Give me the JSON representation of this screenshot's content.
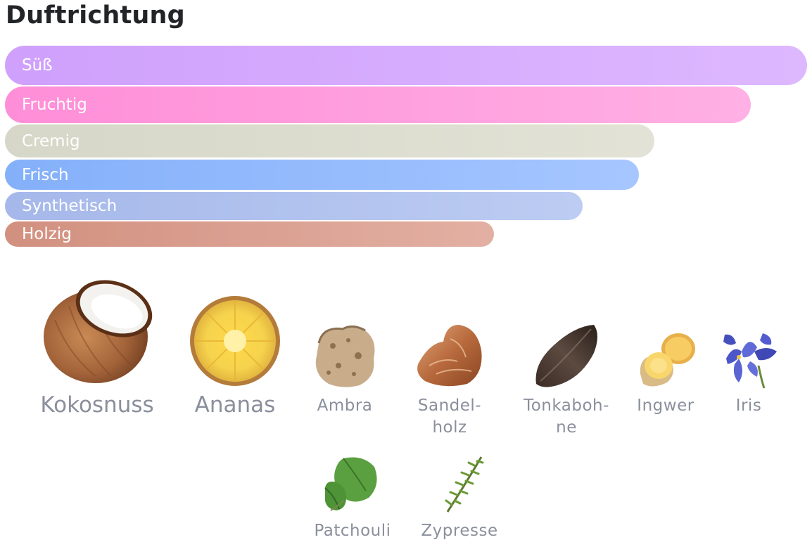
{
  "page": {
    "title": "Duftrichtung"
  },
  "accords": [
    {
      "label": "Süß",
      "strength": 1.0,
      "color_start": "#cfa0fc",
      "color_end": "#ddb8ff"
    },
    {
      "label": "Fruchtig",
      "strength": 0.93,
      "color_start": "#ff8ed8",
      "color_end": "#ffb0e4"
    },
    {
      "label": "Cremig",
      "strength": 0.81,
      "color_start": "#d6d7c8",
      "color_end": "#e2e2d6"
    },
    {
      "label": "Frisch",
      "strength": 0.79,
      "color_start": "#84b0fa",
      "color_end": "#a6c6ff"
    },
    {
      "label": "Synthetisch",
      "strength": 0.72,
      "color_start": "#a6b8ea",
      "color_end": "#bcccf2"
    },
    {
      "label": "Holzig",
      "strength": 0.61,
      "color_start": "#d2907f",
      "color_end": "#e2b0a3"
    }
  ],
  "notes": [
    {
      "label": "Kokosnuss",
      "icon": "coconut-icon"
    },
    {
      "label": "Ananas",
      "icon": "pineapple-icon"
    },
    {
      "label": "Ambra",
      "icon": "ambra-icon"
    },
    {
      "label": "Sandel-\nholz",
      "icon": "sandalwood-icon"
    },
    {
      "label": "Tonkaboh-\nne",
      "icon": "tonka-bean-icon"
    },
    {
      "label": "Ingwer",
      "icon": "ginger-icon"
    },
    {
      "label": "Iris",
      "icon": "iris-icon"
    },
    {
      "label": "Patchouli",
      "icon": "patchouli-icon"
    },
    {
      "label": "Zypresse",
      "icon": "cypress-icon"
    }
  ]
}
